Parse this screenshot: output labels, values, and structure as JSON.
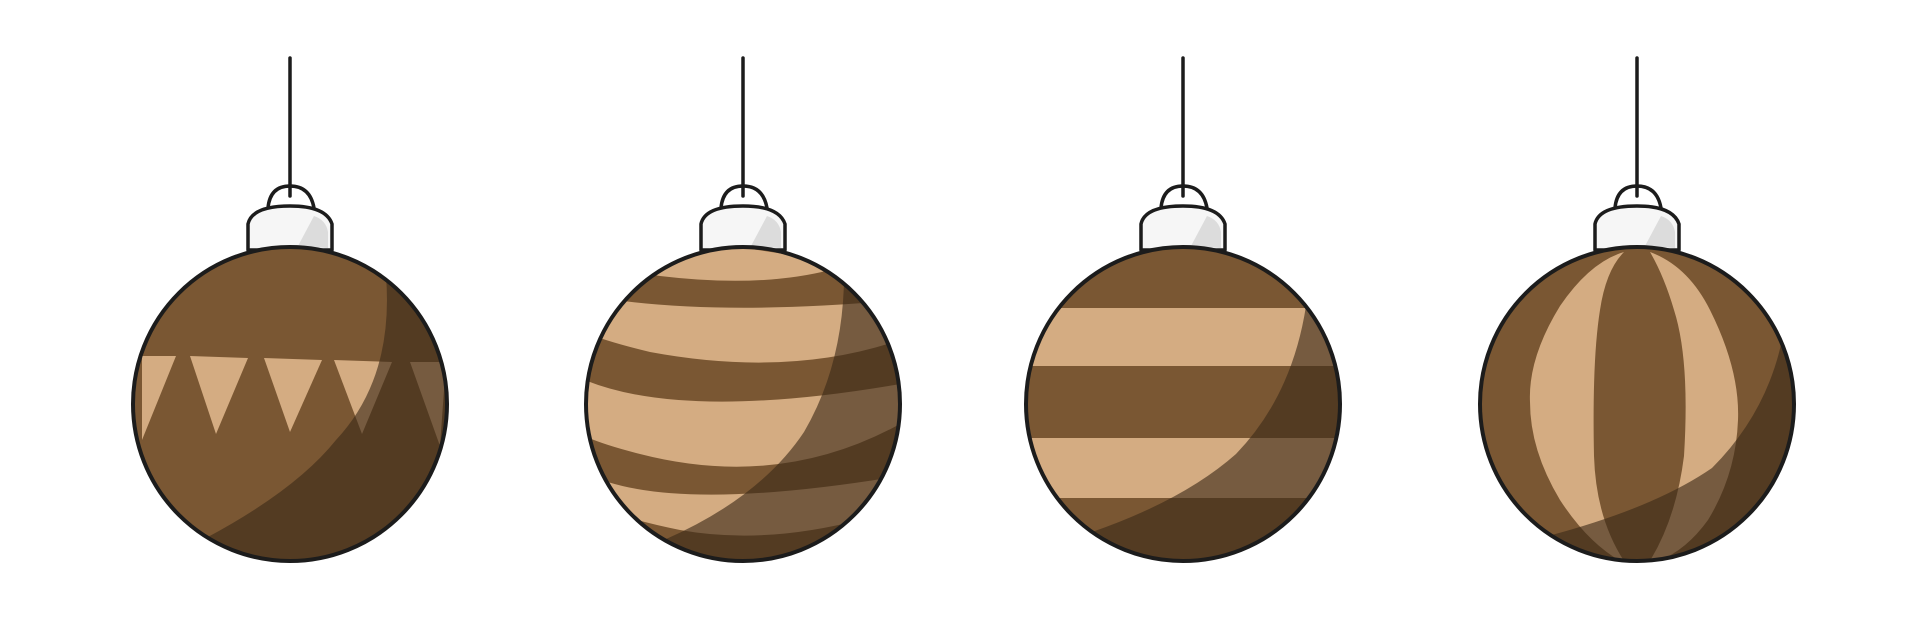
{
  "colors": {
    "background": "#ffffff",
    "ball_base": "#7a5733",
    "pattern_light": "#d4ac82",
    "shadow": "#3c2a18",
    "shadow_tint": "#6b5640",
    "outline": "#1c1c1c",
    "cap_fill": "#f6f6f6",
    "cap_shine": "#dcdcdc"
  },
  "ornaments": [
    {
      "pattern": "pennant-bunting"
    },
    {
      "pattern": "wavy-stripes"
    },
    {
      "pattern": "horizontal-stripes"
    },
    {
      "pattern": "vertical-segments"
    }
  ]
}
